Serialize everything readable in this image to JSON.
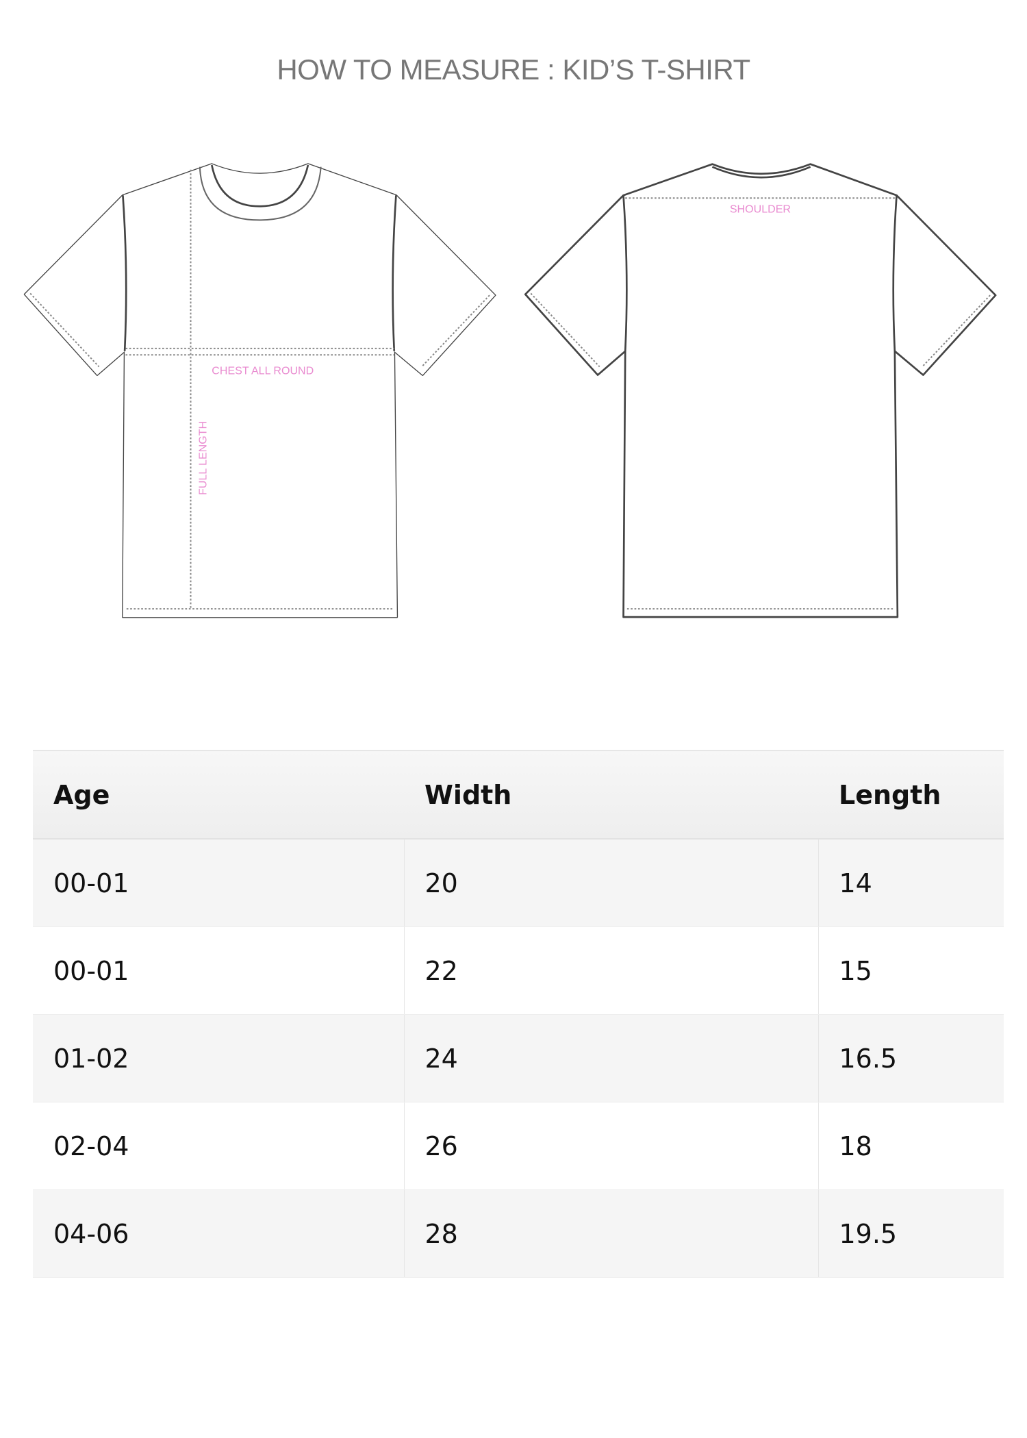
{
  "title": "HOW TO MEASURE : KID’S T-SHIRT",
  "diagram": {
    "front_labels": {
      "chest": "CHEST ALL ROUND",
      "length": "FULL LENGTH"
    },
    "back_labels": {
      "shoulder": "SHOULDER"
    },
    "label_color": "#e98bd0"
  },
  "table": {
    "headers": [
      "Age",
      "Width",
      "Length"
    ],
    "rows": [
      [
        "00-01",
        "20",
        "14"
      ],
      [
        "00-01",
        "22",
        "15"
      ],
      [
        "01-02",
        "24",
        "16.5"
      ],
      [
        "02-04",
        "26",
        "18"
      ],
      [
        "04-06",
        "28",
        "19.5"
      ]
    ]
  }
}
